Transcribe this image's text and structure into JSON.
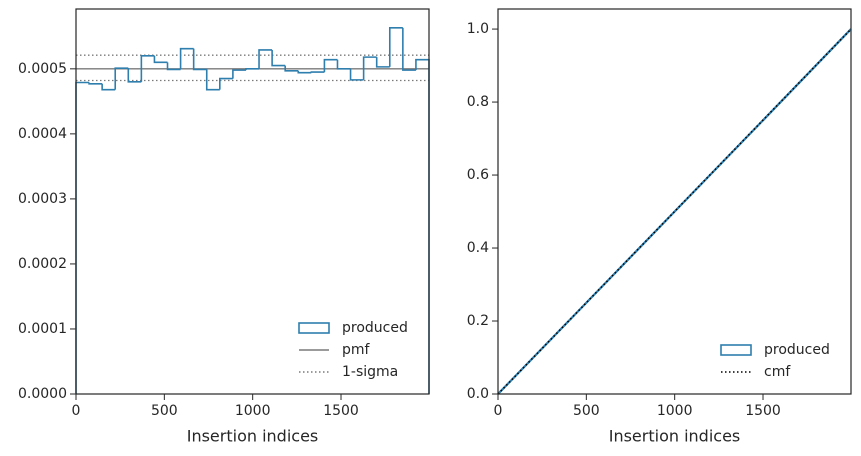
{
  "chart_data": [
    {
      "type": "histogram",
      "xlabel": "Insertion indices",
      "bins": [
        0,
        74,
        148,
        222,
        296,
        370,
        444,
        518,
        592,
        666,
        740,
        814,
        888,
        962,
        1036,
        1110,
        1184,
        1258,
        1332,
        1406,
        1480,
        1554,
        1628,
        1702,
        1776,
        1850,
        1924,
        1998
      ],
      "values": [
        0.000479,
        0.000477,
        0.000468,
        0.000501,
        0.00048,
        0.00052,
        0.00051,
        0.000499,
        0.000531,
        0.000499,
        0.000468,
        0.000485,
        0.000498,
        0.0005,
        0.000529,
        0.000505,
        0.000497,
        0.000494,
        0.000495,
        0.000514,
        0.0005,
        0.000483,
        0.000518,
        0.000503,
        0.000563,
        0.000498,
        0.000514
      ],
      "name": "produced",
      "color": "#2e7eae",
      "hlines": [
        {
          "name": "pmf",
          "values": [
            0.0005
          ],
          "color": "#7a7a7a",
          "style": "solid"
        },
        {
          "name": "1-sigma",
          "values": [
            0.000521,
            0.000482
          ],
          "color": "#7a7a7a",
          "style": "dotted"
        }
      ],
      "xlim": [
        0,
        1998
      ],
      "ylim": [
        0,
        0.000592
      ],
      "xticks": [
        0,
        500,
        1000,
        1500
      ],
      "yticks": [
        {
          "value": 0,
          "label": "0.0000"
        },
        {
          "value": 0.0001,
          "label": "0.0001"
        },
        {
          "value": 0.0002,
          "label": "0.0002"
        },
        {
          "value": 0.0003,
          "label": "0.0003"
        },
        {
          "value": 0.0004,
          "label": "0.0004"
        },
        {
          "value": 0.0005,
          "label": "0.0005"
        }
      ],
      "legend": "lower right"
    },
    {
      "type": "line",
      "xlabel": "Insertion indices",
      "series": [
        {
          "name": "produced",
          "color": "#2e7eae",
          "style": "patch",
          "x": [
            0,
            500,
            1000,
            1500,
            1998
          ],
          "values": [
            0,
            0.25,
            0.5,
            0.75,
            1
          ]
        },
        {
          "name": "cmf",
          "color": "#000000",
          "style": "dotted",
          "x": [
            0,
            1998
          ],
          "values": [
            0,
            1
          ]
        }
      ],
      "xlim": [
        0,
        1998
      ],
      "ylim": [
        0,
        1.055
      ],
      "xticks": [
        0,
        500,
        1000,
        1500
      ],
      "yticks": [
        {
          "value": 0,
          "label": "0.0"
        },
        {
          "value": 0.2,
          "label": "0.2"
        },
        {
          "value": 0.4,
          "label": "0.4"
        },
        {
          "value": 0.6,
          "label": "0.6"
        },
        {
          "value": 0.8,
          "label": "0.8"
        },
        {
          "value": 1,
          "label": "1.0"
        }
      ],
      "legend": "lower right"
    }
  ]
}
